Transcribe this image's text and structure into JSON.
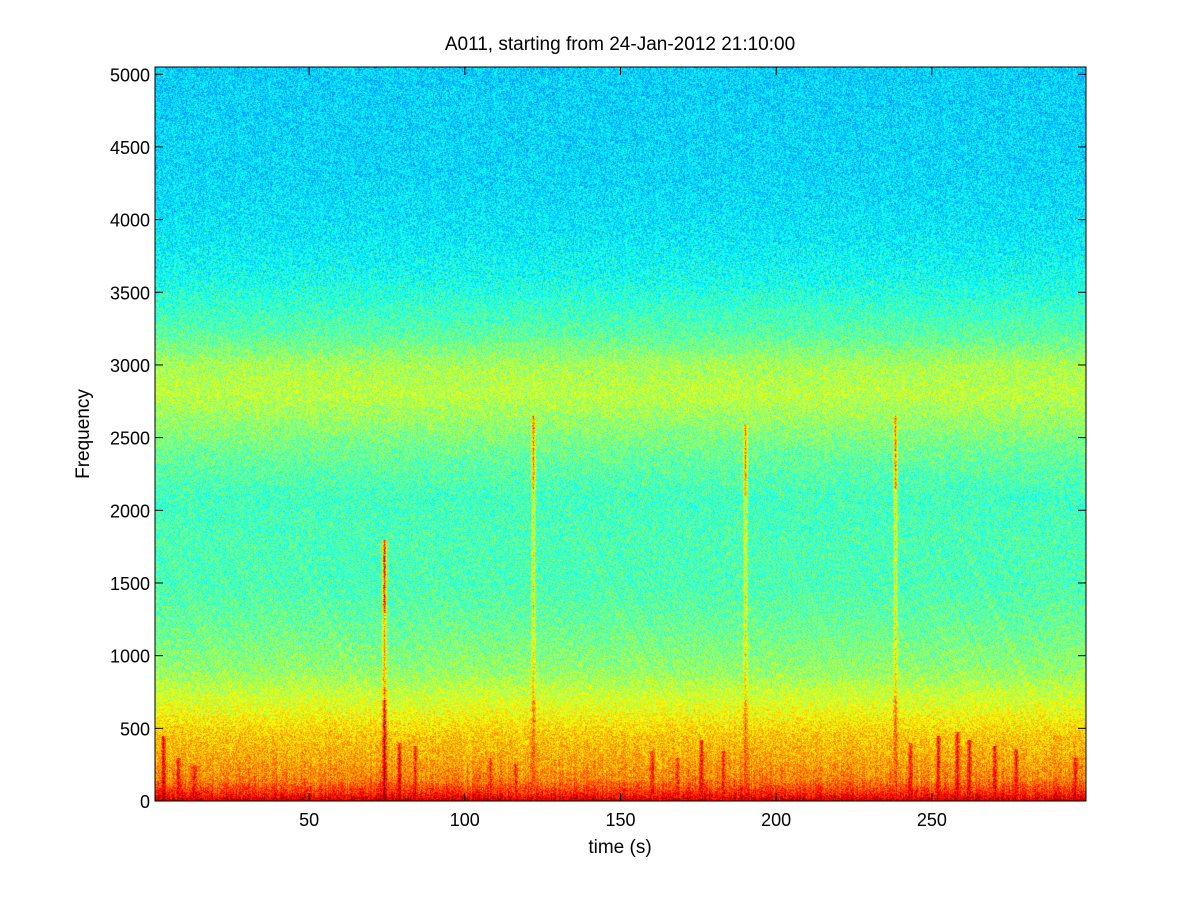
{
  "chart_data": {
    "type": "heatmap",
    "title": "A011, starting from 24-Jan-2012 21:10:00",
    "xlabel": "time (s)",
    "ylabel": "Frequency",
    "xlim": [
      0.5,
      299.5
    ],
    "ylim": [
      0,
      5050
    ],
    "xticks": [
      50,
      100,
      150,
      200,
      250
    ],
    "xtick_labels": [
      "50",
      "100",
      "150",
      "200",
      "250"
    ],
    "yticks": [
      0,
      500,
      1000,
      1500,
      2000,
      2500,
      3000,
      3500,
      4000,
      4500,
      5000
    ],
    "ytick_labels": [
      "0",
      "500",
      "1000",
      "1500",
      "2000",
      "2500",
      "3000",
      "3500",
      "4000",
      "4500",
      "5000"
    ],
    "grid": false,
    "colormap": "jet",
    "colors": {
      "axis": "#000000",
      "background": "#ffffff"
    },
    "intensity_profile": {
      "description_units": "normalized colormap level 0-1 versus frequency",
      "frequency": [
        0,
        60,
        150,
        300,
        450,
        600,
        750,
        900,
        1200,
        1500,
        1800,
        2100,
        2400,
        2600,
        2800,
        3000,
        3200,
        3400,
        3600,
        3900,
        4300,
        5050
      ],
      "level": [
        0.9,
        0.8,
        0.72,
        0.69,
        0.67,
        0.62,
        0.57,
        0.52,
        0.48,
        0.45,
        0.45,
        0.44,
        0.48,
        0.52,
        0.56,
        0.54,
        0.47,
        0.43,
        0.39,
        0.36,
        0.34,
        0.33
      ]
    },
    "transient_events": [
      {
        "time": 3,
        "freq_max": 450,
        "level": 0.9
      },
      {
        "time": 8,
        "freq_max": 300,
        "level": 0.88
      },
      {
        "time": 13,
        "freq_max": 250,
        "level": 0.86
      },
      {
        "time": 74,
        "freq_max": 1800,
        "level": 0.95
      },
      {
        "time": 79,
        "freq_max": 400,
        "level": 0.88
      },
      {
        "time": 84,
        "freq_max": 380,
        "level": 0.86
      },
      {
        "time": 108,
        "freq_max": 300,
        "level": 0.85
      },
      {
        "time": 116,
        "freq_max": 260,
        "level": 0.85
      },
      {
        "time": 122,
        "freq_max": 2650,
        "level": 0.8
      },
      {
        "time": 160,
        "freq_max": 350,
        "level": 0.86
      },
      {
        "time": 168,
        "freq_max": 300,
        "level": 0.85
      },
      {
        "time": 176,
        "freq_max": 420,
        "level": 0.87
      },
      {
        "time": 183,
        "freq_max": 350,
        "level": 0.86
      },
      {
        "time": 190,
        "freq_max": 2600,
        "level": 0.78
      },
      {
        "time": 238,
        "freq_max": 2650,
        "level": 0.8
      },
      {
        "time": 243,
        "freq_max": 400,
        "level": 0.88
      },
      {
        "time": 252,
        "freq_max": 450,
        "level": 0.9
      },
      {
        "time": 258,
        "freq_max": 480,
        "level": 0.92
      },
      {
        "time": 262,
        "freq_max": 420,
        "level": 0.9
      },
      {
        "time": 270,
        "freq_max": 380,
        "level": 0.88
      },
      {
        "time": 277,
        "freq_max": 360,
        "level": 0.87
      },
      {
        "time": 296,
        "freq_max": 300,
        "level": 0.86
      }
    ]
  }
}
